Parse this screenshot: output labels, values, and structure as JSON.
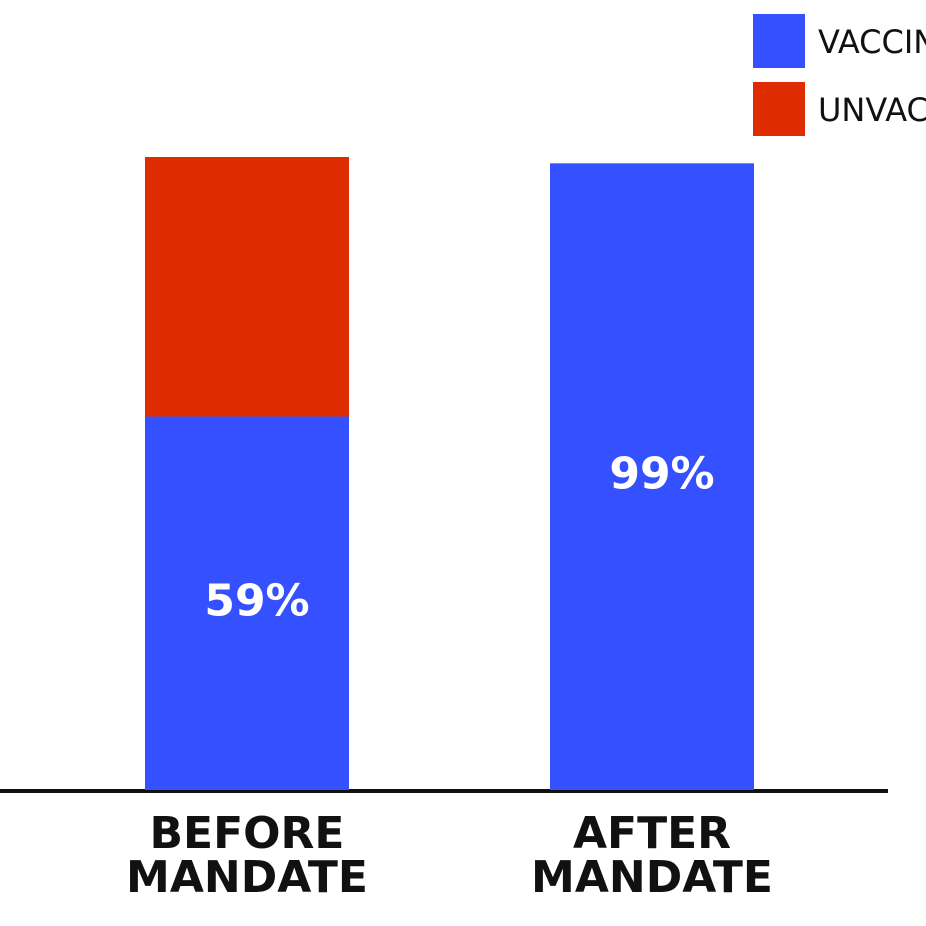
{
  "chart_data": {
    "type": "stacked-bar",
    "categories": [
      "BEFORE MANDATE",
      "AFTER MANDATE"
    ],
    "series": [
      {
        "name": "VACCIN",
        "color": "#3551ff",
        "values": [
          59,
          99
        ],
        "value_labels": [
          "59%",
          "99%"
        ]
      },
      {
        "name": "UNVAC",
        "color": "#de2c00",
        "values": [
          41,
          null
        ]
      }
    ]
  }
}
